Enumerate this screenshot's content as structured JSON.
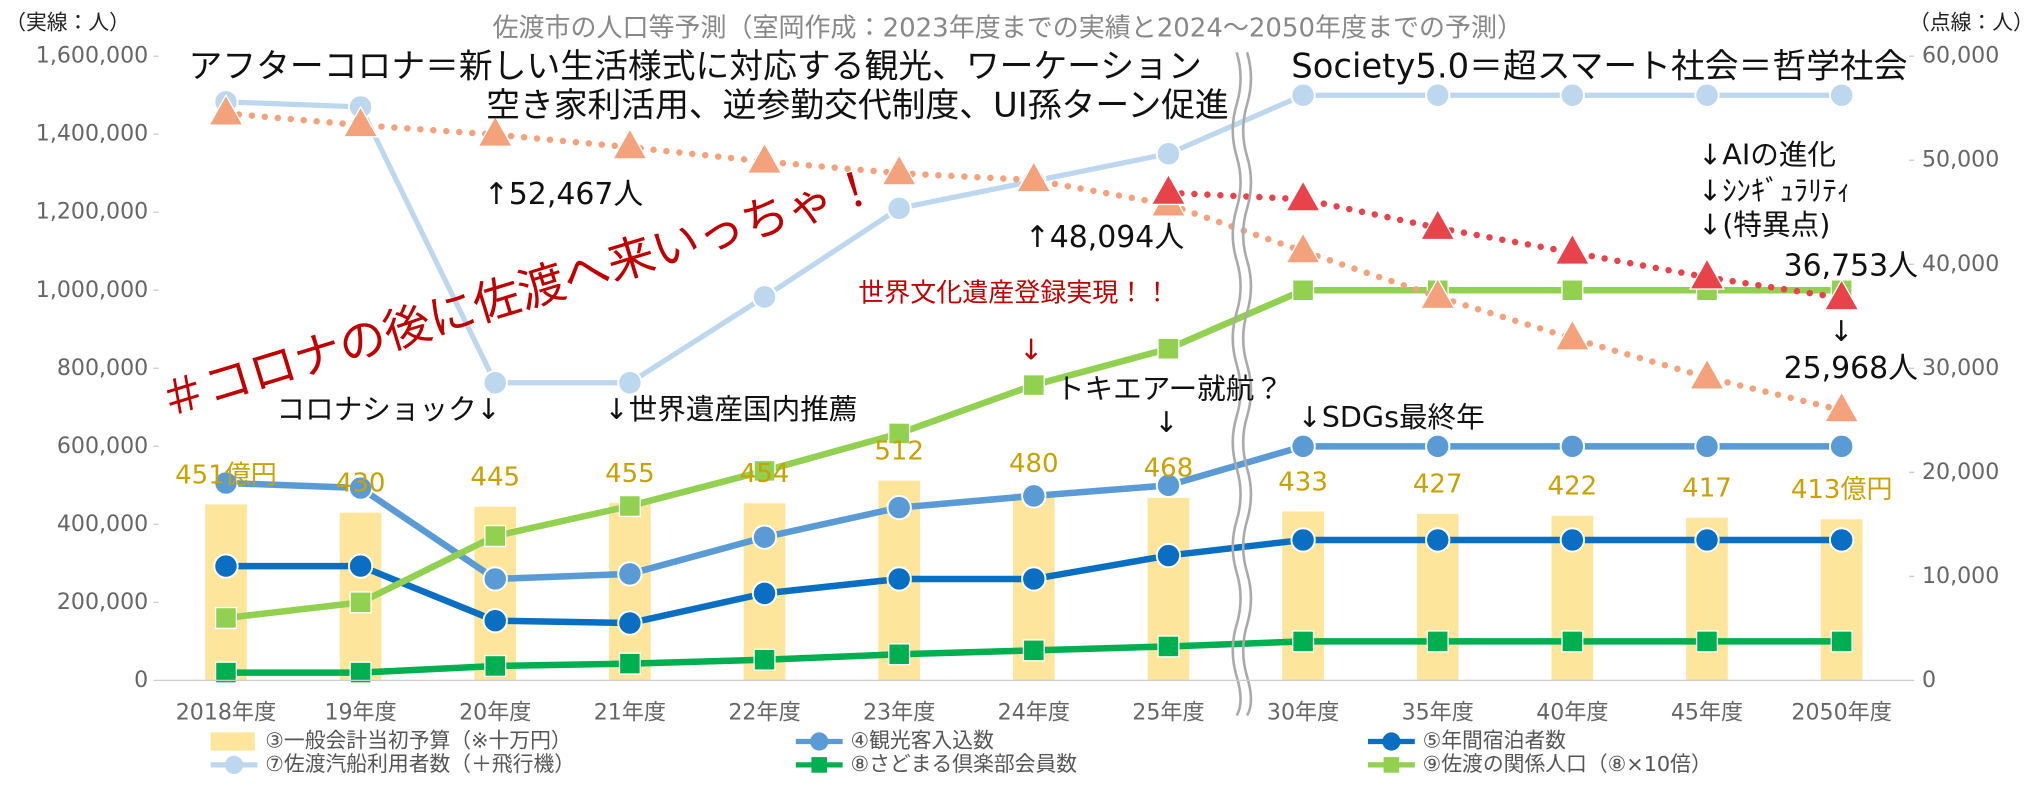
{
  "chart_data": {
    "type": "combo",
    "title": "佐渡市の人口等予測（室岡作成：2023年度までの実績と2024～2050年度までの予測）",
    "y_label": "（実線：人）",
    "y2_label": "（点線：人）",
    "categories": [
      "2018年度",
      "19年度",
      "20年度",
      "21年度",
      "22年度",
      "23年度",
      "24年度",
      "25年度",
      "30年度",
      "35年度",
      "40年度",
      "45年度",
      "2050年度"
    ],
    "ylim": [
      0,
      1600000
    ],
    "yticks": [
      0,
      {
        "value": 200000,
        "label": "200,000"
      },
      {
        "value": 400000,
        "label": "400,000"
      },
      {
        "value": 600000,
        "label": "600,000"
      },
      {
        "value": 800000,
        "label": "800,000"
      },
      {
        "value": 1000000,
        "label": "1,000,000"
      },
      {
        "value": 1200000,
        "label": "1,200,000"
      },
      {
        "value": 1400000,
        "label": "1,400,000"
      },
      {
        "value": 1600000,
        "label": "1,600,000"
      }
    ],
    "y2lim": [
      0,
      60000
    ],
    "y2ticks": [
      0,
      {
        "value": 10000,
        "label": "10,000"
      },
      {
        "value": 20000,
        "label": "20,000"
      },
      {
        "value": 30000,
        "label": "30,000"
      },
      {
        "value": 40000,
        "label": "40,000"
      },
      {
        "value": 50000,
        "label": "50,000"
      },
      {
        "value": 60000,
        "label": "60,000"
      }
    ],
    "series": [
      {
        "name": "③一般会計当初予算（※十万円）",
        "type": "bar",
        "color": "#fde59b",
        "label_color": "#c9a100",
        "values": [
          451000,
          430000,
          445000,
          455000,
          454000,
          512000,
          480000,
          468000,
          433000,
          427000,
          422000,
          417000,
          413000
        ],
        "value_labels": [
          "451億円",
          "430",
          "445",
          "455",
          "454",
          "512",
          "480",
          "468",
          "433",
          "427",
          "422",
          "417",
          "413億円"
        ]
      },
      {
        "name": "④観光客入込数",
        "type": "line",
        "color": "#5b9bd5",
        "marker": "circle",
        "values": [
          506000,
          493000,
          260000,
          273000,
          367000,
          443000,
          473000,
          500000,
          600000,
          600000,
          600000,
          600000,
          600000
        ]
      },
      {
        "name": "⑤年間宿泊者数",
        "type": "line",
        "color": "#0a6fc2",
        "marker": "circle",
        "values": [
          293000,
          293000,
          153000,
          147000,
          223000,
          260000,
          260000,
          320000,
          360000,
          360000,
          360000,
          360000,
          360000
        ]
      },
      {
        "name": "⑦佐渡汽船利用者数（＋飛行機）",
        "type": "line",
        "color": "#bdd7ee",
        "marker": "circle",
        "values": [
          1483000,
          1470000,
          763000,
          763000,
          983000,
          1210000,
          1280000,
          1350000,
          1500000,
          1500000,
          1500000,
          1500000,
          1500000
        ]
      },
      {
        "name": "⑧さどまる倶楽部会員数",
        "type": "line",
        "color": "#00b050",
        "marker": "square",
        "values": [
          20000,
          20000,
          37000,
          43000,
          53000,
          67000,
          77000,
          87000,
          100000,
          100000,
          100000,
          100000,
          100000
        ]
      },
      {
        "name": "⑨佐渡の関係人口（⑧×10倍）",
        "type": "line",
        "color": "#92d050",
        "marker": "square",
        "values": [
          160000,
          200000,
          370000,
          447000,
          537000,
          633000,
          757000,
          850000,
          1000000,
          1000000,
          1000000,
          1000000,
          1000000
        ]
      },
      {
        "type": "line",
        "style": "dotted",
        "axis": "y2",
        "color": "#f4a27c",
        "marker": "triangle",
        "values": [
          54500,
          53375,
          52467,
          51250,
          49875,
          48750,
          48094,
          45750,
          41250,
          36875,
          32875,
          29125,
          25968
        ],
        "value_labels": [
          null,
          null,
          "↑52,467人",
          null,
          null,
          null,
          "↑48,094人",
          null,
          null,
          null,
          null,
          null,
          "25,968人"
        ]
      },
      {
        "type": "line",
        "style": "dotted",
        "axis": "y2",
        "color": "#e8424a",
        "marker": "triangle",
        "values": [
          null,
          null,
          null,
          null,
          null,
          null,
          null,
          46875,
          46250,
          43500,
          41125,
          38750,
          36753
        ],
        "value_labels": [
          null,
          null,
          null,
          null,
          null,
          null,
          null,
          null,
          null,
          null,
          null,
          null,
          "36,753人"
        ]
      }
    ],
    "annotations": [
      "アフターコロナ＝新しい生活様式に対応する観光、ワーケーション",
      "空き家利活用、逆参勤交代制度、UI孫ターン促進",
      "Society5.0＝超スマート社会＝哲学社会",
      "＃コロナの後に佐渡へ来いっちゃ！",
      "世界文化遺産登録実現！！",
      "↓",
      "コロナショック↓",
      "↓世界遺産国内推薦",
      "トキエアー就航？",
      "↓",
      "↓SDGs最終年",
      "↓AIの進化",
      "↓ｼﾝｷﾞｭﾗﾘﾃｨ",
      "↓(特異点)",
      "↓"
    ]
  }
}
